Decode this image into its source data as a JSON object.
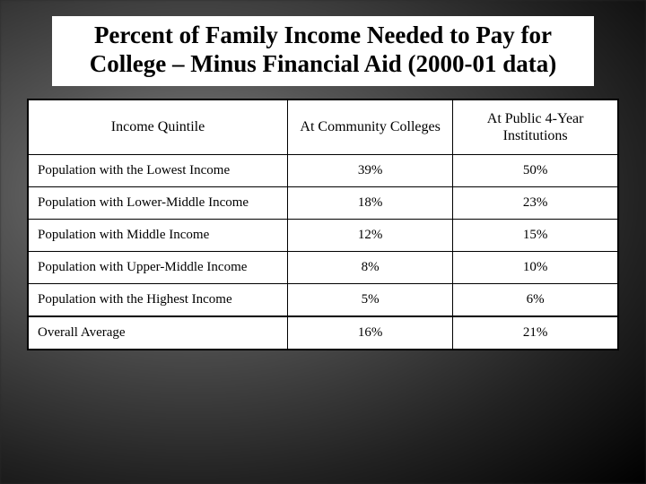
{
  "title": "Percent of Family Income Needed to Pay for College – Minus Financial Aid (2000-01 data)",
  "table": {
    "columns": [
      "Income Quintile",
      "At Community Colleges",
      "At Public 4-Year Institutions"
    ],
    "rows": [
      {
        "label": "Population with the Lowest Income",
        "cc": "39%",
        "p4": "50%"
      },
      {
        "label": "Population with Lower-Middle Income",
        "cc": "18%",
        "p4": "23%"
      },
      {
        "label": "Population with Middle Income",
        "cc": "12%",
        "p4": "15%"
      },
      {
        "label": "Population with Upper-Middle Income",
        "cc": "8%",
        "p4": "10%"
      },
      {
        "label": "Population with the Highest Income",
        "cc": "5%",
        "p4": "6%"
      },
      {
        "label": "Overall Average",
        "cc": "16%",
        "p4": "21%"
      }
    ],
    "column_widths_pct": [
      44,
      28,
      28
    ],
    "background_color": "#ffffff",
    "border_color": "#000000",
    "title_fontsize": 27,
    "header_fontsize": 16,
    "cell_fontsize": 15
  }
}
